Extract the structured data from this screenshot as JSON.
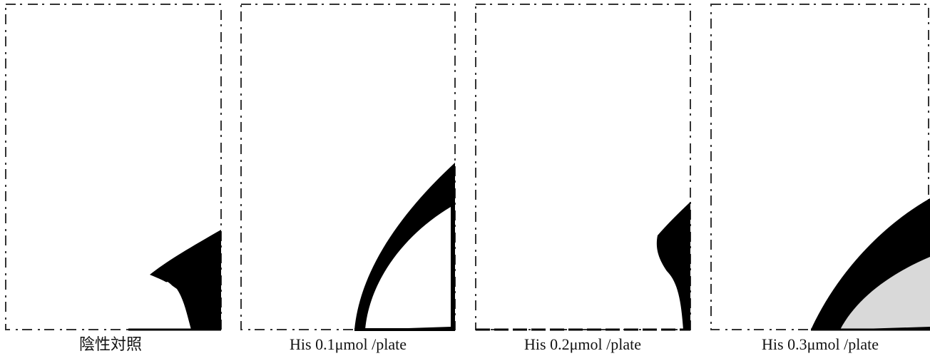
{
  "panels": [
    {
      "caption": "陰性対照"
    },
    {
      "caption": "His 0.1μmol /plate"
    },
    {
      "caption": "His 0.2μmol /plate"
    },
    {
      "caption": "His 0.3μmol /plate"
    }
  ]
}
